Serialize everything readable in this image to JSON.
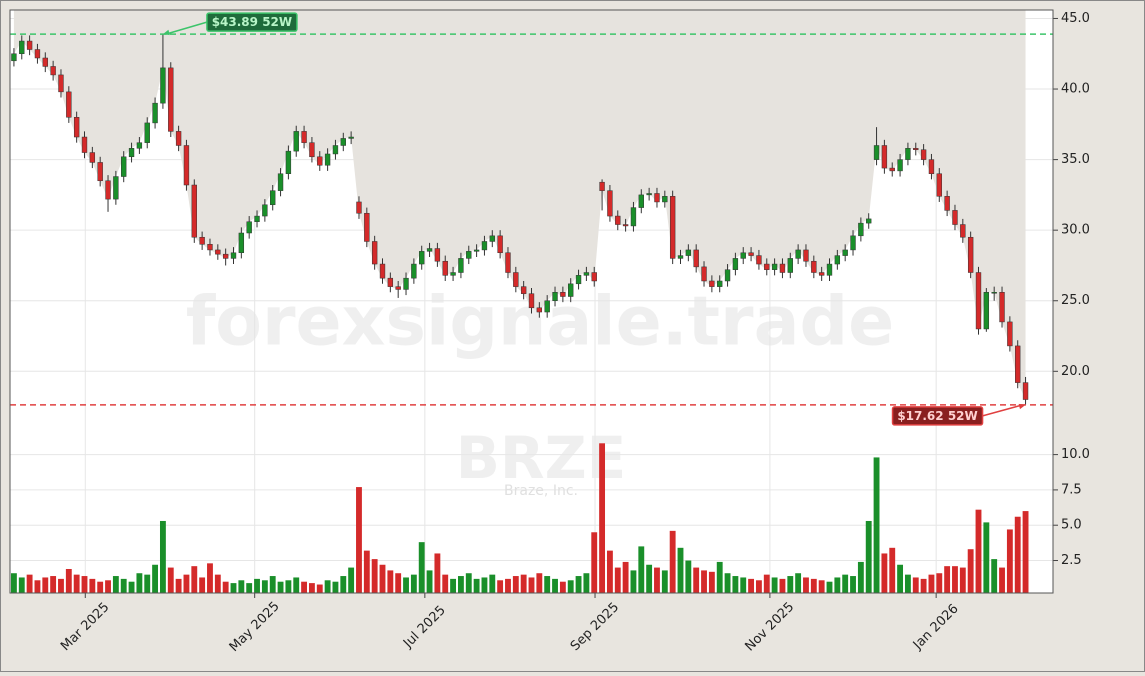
{
  "chart_data": {
    "type": "candlestick",
    "watermark": "forexsignale.trade",
    "ticker": "BRZE",
    "company": "Braze, Inc.",
    "up_color": "#1a8f2a",
    "down_color": "#d42a2a",
    "grid": true,
    "xlim": [
      -0.5,
      132.5
    ],
    "xticks": [
      {
        "value": 9.1,
        "label": "Mar 2025"
      },
      {
        "value": 30.7,
        "label": "May 2025"
      },
      {
        "value": 52.4,
        "label": "Jul 2025"
      },
      {
        "value": 74.1,
        "label": "Sep 2025"
      },
      {
        "value": 96.4,
        "label": "Nov 2025"
      },
      {
        "value": 117.6,
        "label": "Jan 2026"
      }
    ],
    "ylim": [
      15.7,
      45.6
    ],
    "yticks": [
      {
        "value": 20,
        "label": "20.0"
      },
      {
        "value": 25,
        "label": "25.0"
      },
      {
        "value": 30,
        "label": "30.0"
      },
      {
        "value": 35,
        "label": "35.0"
      },
      {
        "value": 40,
        "label": "40.0"
      },
      {
        "value": 45,
        "label": "45.0"
      }
    ],
    "volume_ylim": [
      0.2,
      11.6
    ],
    "volume_yticks": [
      2.5,
      {
        "value": 5,
        "label": "5.0"
      },
      7.5,
      {
        "value": 10,
        "label": "10.0"
      }
    ],
    "high_52w": {
      "value": 43.89,
      "label": "$43.89 52W",
      "color": "#3cc46a"
    },
    "low_52w": {
      "value": 17.62,
      "label": "$17.62 52W",
      "color": "#e04040"
    },
    "open": [
      42.0,
      42.5,
      43.4,
      42.8,
      42.2,
      41.6,
      41.0,
      39.8,
      38.0,
      36.6,
      35.5,
      34.8,
      33.5,
      32.2,
      33.8,
      35.2,
      35.8,
      36.2,
      37.6,
      39.0,
      41.5,
      37.0,
      36.0,
      33.2,
      29.5,
      29.0,
      28.6,
      28.3,
      28.0,
      28.4,
      29.8,
      30.6,
      31.0,
      31.8,
      32.8,
      34.0,
      35.6,
      37.0,
      36.2,
      35.2,
      34.6,
      35.4,
      36.0,
      36.5,
      32.0,
      31.2,
      29.2,
      27.6,
      26.6,
      26.0,
      25.8,
      26.6,
      27.6,
      28.5,
      28.7,
      27.8,
      26.8,
      27.0,
      28.0,
      28.5,
      28.6,
      29.2,
      29.6,
      28.4,
      27.0,
      26.0,
      25.5,
      24.5,
      24.2,
      25.0,
      25.6,
      25.3,
      26.2,
      26.8,
      27.0,
      33.4,
      32.8,
      31.0,
      30.4,
      30.3,
      31.6,
      32.5,
      32.6,
      32.0,
      32.4,
      28.0,
      28.2,
      28.6,
      27.4,
      26.4,
      26.0,
      26.4,
      27.2,
      28.0,
      28.4,
      28.2,
      27.6,
      27.2,
      27.6,
      27.0,
      28.0,
      28.6,
      27.8,
      27.0,
      26.8,
      27.6,
      28.2,
      28.6,
      29.6,
      30.5,
      35.0,
      36.0,
      34.4,
      34.2,
      35.0,
      35.8,
      35.7,
      35.0,
      34.0,
      32.4,
      31.4,
      30.4,
      29.5,
      27.0,
      23.0,
      25.6,
      25.6,
      23.5,
      21.8,
      19.2
    ],
    "high": [
      42.9,
      43.8,
      43.8,
      43.2,
      42.6,
      42.0,
      41.4,
      40.2,
      38.4,
      37.0,
      35.9,
      35.2,
      33.9,
      34.2,
      35.6,
      36.2,
      36.6,
      38.0,
      39.4,
      43.89,
      41.9,
      37.4,
      36.4,
      33.6,
      29.9,
      29.4,
      29.0,
      28.7,
      28.8,
      30.2,
      31.0,
      31.4,
      32.2,
      33.2,
      34.4,
      36.0,
      37.4,
      37.4,
      36.6,
      35.6,
      35.8,
      36.4,
      36.9,
      37.0,
      32.4,
      31.6,
      29.6,
      28.0,
      27.0,
      26.4,
      27.0,
      28.0,
      28.9,
      29.1,
      29.1,
      28.2,
      27.4,
      28.4,
      28.9,
      29.0,
      29.6,
      30.0,
      30.0,
      28.8,
      27.4,
      26.4,
      25.9,
      24.9,
      25.4,
      26.0,
      26.0,
      26.6,
      27.2,
      27.4,
      27.4,
      33.6,
      33.2,
      31.4,
      30.8,
      32.0,
      32.9,
      33.0,
      33.0,
      32.8,
      32.8,
      28.6,
      29.0,
      29.0,
      27.8,
      26.8,
      26.8,
      27.6,
      28.4,
      28.8,
      28.8,
      28.6,
      28.0,
      28.0,
      28.0,
      28.4,
      29.0,
      29.0,
      28.2,
      27.4,
      28.0,
      28.6,
      29.0,
      30.0,
      30.9,
      31.2,
      37.3,
      36.4,
      34.8,
      35.4,
      36.2,
      36.2,
      36.1,
      35.4,
      34.4,
      32.8,
      31.8,
      30.8,
      29.9,
      27.4,
      25.9,
      26.0,
      26.0,
      23.9,
      22.2,
      19.6
    ],
    "low": [
      41.6,
      42.1,
      42.4,
      41.8,
      41.2,
      40.6,
      39.4,
      37.6,
      36.2,
      35.1,
      34.4,
      33.1,
      31.3,
      31.8,
      33.4,
      34.8,
      35.4,
      35.8,
      37.2,
      38.6,
      36.6,
      35.6,
      32.8,
      29.1,
      28.6,
      28.2,
      27.9,
      27.5,
      27.6,
      28.0,
      29.4,
      30.2,
      30.6,
      31.4,
      32.4,
      33.6,
      35.2,
      35.8,
      34.8,
      34.2,
      34.2,
      35.0,
      35.6,
      36.1,
      30.8,
      28.8,
      27.2,
      26.2,
      25.6,
      25.2,
      25.4,
      26.2,
      27.2,
      28.1,
      27.4,
      26.4,
      26.4,
      26.6,
      27.6,
      28.1,
      28.2,
      28.8,
      28.0,
      26.6,
      25.6,
      25.1,
      24.1,
      23.8,
      23.8,
      24.6,
      24.9,
      24.9,
      25.8,
      26.4,
      26.0,
      31.4,
      30.6,
      30.0,
      29.9,
      29.9,
      31.2,
      32.1,
      31.6,
      31.6,
      27.6,
      27.6,
      27.8,
      27.0,
      26.0,
      25.6,
      25.6,
      26.0,
      26.8,
      27.6,
      27.8,
      27.2,
      26.8,
      26.8,
      26.6,
      26.6,
      27.6,
      27.4,
      26.6,
      26.4,
      26.4,
      27.2,
      27.8,
      28.2,
      29.2,
      30.1,
      34.6,
      34.0,
      33.8,
      33.8,
      34.6,
      35.3,
      34.6,
      33.6,
      32.0,
      31.0,
      30.0,
      29.1,
      26.6,
      22.6,
      22.8,
      25.0,
      23.1,
      21.4,
      18.8,
      17.62
    ],
    "close": [
      42.5,
      43.4,
      42.8,
      42.2,
      41.6,
      41.0,
      39.8,
      38.0,
      36.6,
      35.5,
      34.8,
      33.5,
      32.2,
      33.8,
      35.2,
      35.8,
      36.2,
      37.6,
      39.0,
      41.5,
      37.0,
      36.0,
      33.2,
      29.5,
      29.0,
      28.6,
      28.3,
      28.0,
      28.4,
      29.8,
      30.6,
      31.0,
      31.8,
      32.8,
      34.0,
      35.6,
      37.0,
      36.2,
      35.2,
      34.6,
      35.4,
      36.0,
      36.5,
      36.6,
      31.2,
      29.2,
      27.6,
      26.6,
      26.0,
      25.8,
      26.6,
      27.6,
      28.5,
      28.7,
      27.8,
      26.8,
      27.0,
      28.0,
      28.5,
      28.6,
      29.2,
      29.6,
      28.4,
      27.0,
      26.0,
      25.5,
      24.5,
      24.2,
      25.0,
      25.6,
      25.3,
      26.2,
      26.8,
      27.0,
      26.4,
      32.8,
      31.0,
      30.4,
      30.3,
      31.6,
      32.5,
      32.6,
      32.0,
      32.4,
      28.0,
      28.2,
      28.6,
      27.4,
      26.4,
      26.0,
      26.4,
      27.2,
      28.0,
      28.4,
      28.2,
      27.6,
      27.2,
      27.6,
      27.0,
      28.0,
      28.6,
      27.8,
      27.0,
      26.8,
      27.6,
      28.2,
      28.6,
      29.6,
      30.5,
      30.8,
      36.0,
      34.4,
      34.2,
      35.0,
      35.8,
      35.7,
      35.0,
      34.0,
      32.4,
      31.4,
      30.4,
      29.5,
      27.0,
      23.0,
      25.6,
      25.6,
      23.5,
      21.8,
      19.2,
      18.0
    ],
    "volume": [
      1.6,
      1.3,
      1.5,
      1.1,
      1.3,
      1.4,
      1.2,
      1.9,
      1.5,
      1.4,
      1.2,
      1.0,
      1.1,
      1.4,
      1.2,
      1.0,
      1.6,
      1.5,
      2.2,
      5.3,
      2.0,
      1.2,
      1.5,
      2.1,
      1.3,
      2.3,
      1.5,
      1.0,
      0.9,
      1.1,
      0.9,
      1.2,
      1.1,
      1.4,
      1.0,
      1.1,
      1.3,
      1.0,
      0.9,
      0.8,
      1.1,
      1.0,
      1.4,
      2.0,
      7.7,
      3.2,
      2.6,
      2.2,
      1.8,
      1.6,
      1.3,
      1.5,
      3.8,
      1.8,
      3.0,
      1.5,
      1.2,
      1.4,
      1.6,
      1.2,
      1.3,
      1.5,
      1.1,
      1.2,
      1.4,
      1.5,
      1.3,
      1.6,
      1.4,
      1.2,
      1.0,
      1.1,
      1.4,
      1.6,
      4.5,
      10.8,
      3.2,
      2.0,
      2.4,
      1.8,
      3.5,
      2.2,
      2.0,
      1.8,
      4.6,
      3.4,
      2.5,
      2.0,
      1.8,
      1.7,
      2.4,
      1.6,
      1.4,
      1.3,
      1.2,
      1.1,
      1.5,
      1.3,
      1.2,
      1.4,
      1.6,
      1.3,
      1.2,
      1.1,
      1.0,
      1.3,
      1.5,
      1.4,
      2.4,
      5.3,
      9.8,
      3.0,
      3.4,
      2.2,
      1.5,
      1.3,
      1.2,
      1.5,
      1.6,
      2.1,
      2.1,
      2.0,
      3.3,
      6.1,
      5.2,
      2.6,
      2.0,
      4.7,
      5.6,
      6.0
    ]
  }
}
